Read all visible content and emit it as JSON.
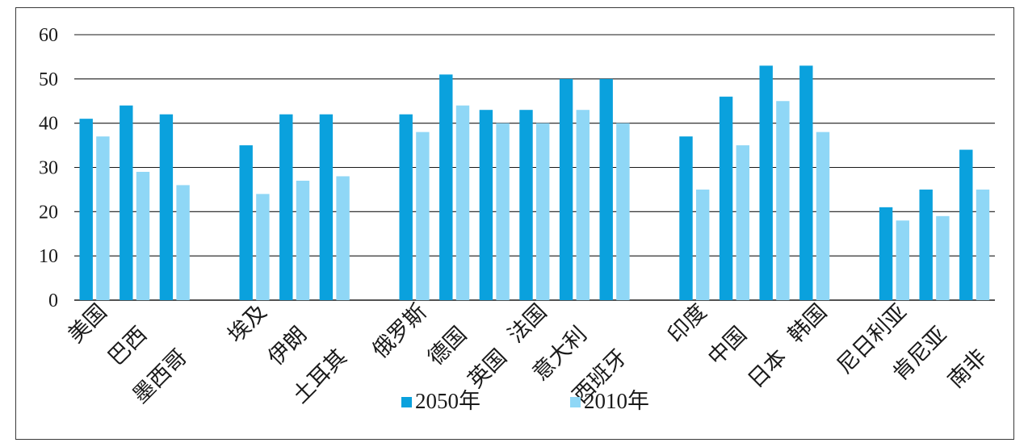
{
  "chart_data": {
    "type": "bar",
    "categories": [
      "美国",
      "巴西",
      "墨西哥",
      "埃及",
      "伊朗",
      "土耳其",
      "俄罗斯",
      "德国",
      "英国",
      "法国",
      "意大利",
      "西班牙",
      "印度",
      "中国",
      "日本",
      "韩国",
      "尼日利亚",
      "肯尼亚",
      "南非"
    ],
    "groups": [
      3,
      3,
      6,
      4,
      3
    ],
    "series": [
      {
        "name": "2050年",
        "color": "#0aa1dd",
        "values": [
          41,
          44,
          42,
          35,
          42,
          42,
          42,
          51,
          43,
          43,
          50,
          50,
          37,
          46,
          53,
          53,
          21,
          25,
          34
        ]
      },
      {
        "name": "2010年",
        "color": "#8fd7f6",
        "values": [
          37,
          29,
          26,
          24,
          27,
          28,
          38,
          44,
          40,
          40,
          43,
          40,
          25,
          35,
          45,
          38,
          18,
          19,
          25
        ]
      }
    ],
    "ylim": [
      0,
      60
    ],
    "yticks": [
      "0",
      "10",
      "20",
      "30",
      "40",
      "50",
      "60"
    ],
    "grid": true,
    "legend_position": "bottom-center"
  }
}
